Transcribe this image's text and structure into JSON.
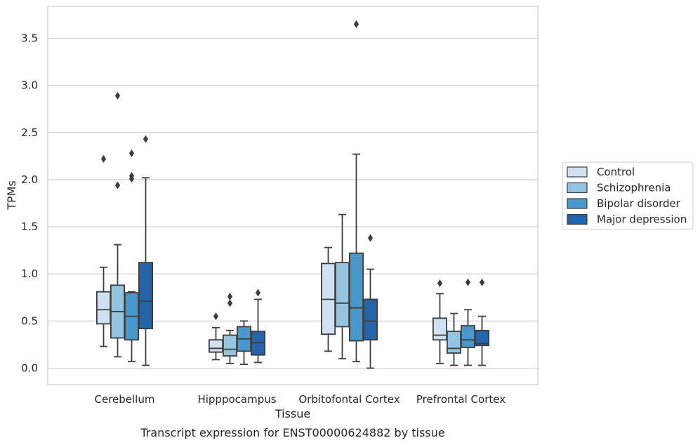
{
  "chart_data": {
    "type": "boxplot",
    "xlabel": "Tissue",
    "ylabel": "TPMs",
    "caption": "Transcript expression for ENST00000624882 by tissue",
    "ylim": [
      -0.17,
      3.85
    ],
    "yticks": [
      "0.0",
      "0.5",
      "1.0",
      "1.5",
      "2.0",
      "2.5",
      "3.0",
      "3.5"
    ],
    "grid": "horizontal",
    "legend_position": "right",
    "categories": [
      "Cerebellum",
      "Hipppocampus",
      "Orbitofontal Cortex",
      "Prefrontal Cortex"
    ],
    "series": [
      {
        "name": "Control",
        "color": "#d0e1f2",
        "boxes": [
          {
            "whislo": 0.23,
            "q1": 0.47,
            "med": 0.62,
            "q3": 0.81,
            "whishi": 1.07,
            "fliers": [
              2.22
            ]
          },
          {
            "whislo": 0.09,
            "q1": 0.17,
            "med": 0.21,
            "q3": 0.3,
            "whishi": 0.43,
            "fliers": [
              0.55
            ]
          },
          {
            "whislo": 0.18,
            "q1": 0.36,
            "med": 0.73,
            "q3": 1.11,
            "whishi": 1.28,
            "fliers": []
          },
          {
            "whislo": 0.05,
            "q1": 0.3,
            "med": 0.35,
            "q3": 0.53,
            "whishi": 0.79,
            "fliers": [
              0.9
            ]
          }
        ]
      },
      {
        "name": "Schizophrenia",
        "color": "#94c4df",
        "boxes": [
          {
            "whislo": 0.12,
            "q1": 0.32,
            "med": 0.6,
            "q3": 0.88,
            "whishi": 1.31,
            "fliers": [
              1.94,
              2.89
            ]
          },
          {
            "whislo": 0.05,
            "q1": 0.13,
            "med": 0.2,
            "q3": 0.35,
            "whishi": 0.4,
            "fliers": [
              0.69,
              0.76
            ]
          },
          {
            "whislo": 0.1,
            "q1": 0.44,
            "med": 0.69,
            "q3": 1.12,
            "whishi": 1.63,
            "fliers": []
          },
          {
            "whislo": 0.03,
            "q1": 0.16,
            "med": 0.21,
            "q3": 0.39,
            "whishi": 0.58,
            "fliers": []
          }
        ]
      },
      {
        "name": "Bipolar disorder",
        "color": "#4a98c9",
        "boxes": [
          {
            "whislo": 0.07,
            "q1": 0.3,
            "med": 0.55,
            "q3": 0.8,
            "whishi": 0.81,
            "fliers": [
              2.01,
              2.04,
              2.28
            ]
          },
          {
            "whislo": 0.04,
            "q1": 0.18,
            "med": 0.31,
            "q3": 0.44,
            "whishi": 0.5,
            "fliers": []
          },
          {
            "whislo": 0.07,
            "q1": 0.29,
            "med": 0.64,
            "q3": 1.22,
            "whishi": 2.27,
            "fliers": [
              3.65
            ]
          },
          {
            "whislo": 0.03,
            "q1": 0.22,
            "med": 0.3,
            "q3": 0.45,
            "whishi": 0.62,
            "fliers": [
              0.91
            ]
          }
        ]
      },
      {
        "name": "Major depression",
        "color": "#2365a8",
        "boxes": [
          {
            "whislo": 0.03,
            "q1": 0.42,
            "med": 0.71,
            "q3": 1.12,
            "whishi": 2.02,
            "fliers": [
              2.43
            ]
          },
          {
            "whislo": 0.06,
            "q1": 0.14,
            "med": 0.27,
            "q3": 0.39,
            "whishi": 0.73,
            "fliers": [
              0.8
            ]
          },
          {
            "whislo": 0.0,
            "q1": 0.3,
            "med": 0.5,
            "q3": 0.73,
            "whishi": 1.05,
            "fliers": [
              1.38
            ]
          },
          {
            "whislo": 0.03,
            "q1": 0.24,
            "med": 0.26,
            "q3": 0.4,
            "whishi": 0.55,
            "fliers": [
              0.91
            ]
          }
        ]
      }
    ]
  }
}
